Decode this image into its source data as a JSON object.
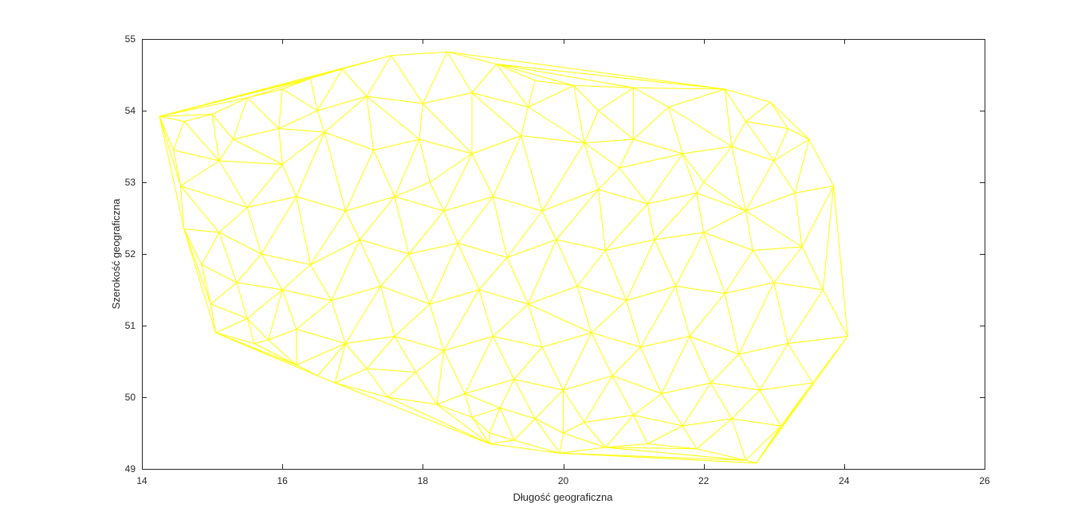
{
  "chart_data": {
    "type": "scatter",
    "subtype": "delaunay-triangulation-mesh",
    "title": "",
    "xlabel": "Długość geograficzna",
    "ylabel": "Szerokość geograficzna",
    "xlim": [
      14,
      26
    ],
    "ylim": [
      49,
      55
    ],
    "xticks": [
      14,
      16,
      18,
      20,
      22,
      24,
      26
    ],
    "yticks": [
      49,
      50,
      51,
      52,
      53,
      54,
      55
    ],
    "grid": false,
    "legend": "none",
    "line_color": "#ffff00",
    "points": [
      [
        14.25,
        53.92
      ],
      [
        14.6,
        53.85
      ],
      [
        15.0,
        53.95
      ],
      [
        15.5,
        54.18
      ],
      [
        16.0,
        54.3
      ],
      [
        16.4,
        54.45
      ],
      [
        16.85,
        54.58
      ],
      [
        17.55,
        54.77
      ],
      [
        18.35,
        54.82
      ],
      [
        19.05,
        54.65
      ],
      [
        19.6,
        54.42
      ],
      [
        20.15,
        54.35
      ],
      [
        21.0,
        54.32
      ],
      [
        22.3,
        54.3
      ],
      [
        22.95,
        54.12
      ],
      [
        23.5,
        53.6
      ],
      [
        23.85,
        52.95
      ],
      [
        24.05,
        50.85
      ],
      [
        23.55,
        50.2
      ],
      [
        23.1,
        49.6
      ],
      [
        22.75,
        49.08
      ],
      [
        22.6,
        49.12
      ],
      [
        21.9,
        49.28
      ],
      [
        21.2,
        49.35
      ],
      [
        20.6,
        49.3
      ],
      [
        19.95,
        49.22
      ],
      [
        19.3,
        49.4
      ],
      [
        18.95,
        49.5
      ],
      [
        18.7,
        49.72
      ],
      [
        18.2,
        49.9
      ],
      [
        17.5,
        50.0
      ],
      [
        16.75,
        50.2
      ],
      [
        16.2,
        50.45
      ],
      [
        15.6,
        50.75
      ],
      [
        15.05,
        50.9
      ],
      [
        14.98,
        51.3
      ],
      [
        14.85,
        51.85
      ],
      [
        14.6,
        52.35
      ],
      [
        14.55,
        52.95
      ],
      [
        14.45,
        53.45
      ],
      [
        15.3,
        53.6
      ],
      [
        15.95,
        53.75
      ],
      [
        16.6,
        53.7
      ],
      [
        17.3,
        53.45
      ],
      [
        17.95,
        53.6
      ],
      [
        18.7,
        53.4
      ],
      [
        19.4,
        53.65
      ],
      [
        20.3,
        53.55
      ],
      [
        21.0,
        53.6
      ],
      [
        21.7,
        53.4
      ],
      [
        22.4,
        53.5
      ],
      [
        23.0,
        53.3
      ],
      [
        23.3,
        52.85
      ],
      [
        22.6,
        52.6
      ],
      [
        21.9,
        52.85
      ],
      [
        21.2,
        52.7
      ],
      [
        20.5,
        52.9
      ],
      [
        19.7,
        52.6
      ],
      [
        19.0,
        52.8
      ],
      [
        18.3,
        52.6
      ],
      [
        17.6,
        52.8
      ],
      [
        16.9,
        52.6
      ],
      [
        16.2,
        52.8
      ],
      [
        15.5,
        52.65
      ],
      [
        15.1,
        52.3
      ],
      [
        15.7,
        52.0
      ],
      [
        16.4,
        51.85
      ],
      [
        17.1,
        52.2
      ],
      [
        17.8,
        52.0
      ],
      [
        18.5,
        52.15
      ],
      [
        19.2,
        51.95
      ],
      [
        19.9,
        52.2
      ],
      [
        20.6,
        52.05
      ],
      [
        21.3,
        52.2
      ],
      [
        22.0,
        52.3
      ],
      [
        22.7,
        52.05
      ],
      [
        23.4,
        52.1
      ],
      [
        23.7,
        51.5
      ],
      [
        23.0,
        51.6
      ],
      [
        22.3,
        51.45
      ],
      [
        21.6,
        51.55
      ],
      [
        20.9,
        51.35
      ],
      [
        20.2,
        51.55
      ],
      [
        19.5,
        51.3
      ],
      [
        18.8,
        51.5
      ],
      [
        18.1,
        51.3
      ],
      [
        17.4,
        51.55
      ],
      [
        16.7,
        51.35
      ],
      [
        16.0,
        51.5
      ],
      [
        15.35,
        51.6
      ],
      [
        15.5,
        51.1
      ],
      [
        16.2,
        50.95
      ],
      [
        16.9,
        50.75
      ],
      [
        17.6,
        50.85
      ],
      [
        18.3,
        50.65
      ],
      [
        19.0,
        50.85
      ],
      [
        19.7,
        50.7
      ],
      [
        20.4,
        50.9
      ],
      [
        21.1,
        50.7
      ],
      [
        21.8,
        50.85
      ],
      [
        22.5,
        50.6
      ],
      [
        23.2,
        50.75
      ],
      [
        22.8,
        50.1
      ],
      [
        22.1,
        50.2
      ],
      [
        21.4,
        50.05
      ],
      [
        20.7,
        50.3
      ],
      [
        20.0,
        50.1
      ],
      [
        19.3,
        50.25
      ],
      [
        18.6,
        50.05
      ],
      [
        17.9,
        50.35
      ],
      [
        17.2,
        50.4
      ],
      [
        19.6,
        49.7
      ],
      [
        20.3,
        49.65
      ],
      [
        21.0,
        49.75
      ],
      [
        21.7,
        49.6
      ],
      [
        22.4,
        49.7
      ],
      [
        19.1,
        49.85
      ],
      [
        18.95,
        49.35
      ],
      [
        20.0,
        49.5
      ],
      [
        16.5,
        50.3
      ],
      [
        15.8,
        50.8
      ],
      [
        16.5,
        54.0
      ],
      [
        17.2,
        54.2
      ],
      [
        18.0,
        54.1
      ],
      [
        18.7,
        54.25
      ],
      [
        19.5,
        54.05
      ],
      [
        20.5,
        54.0
      ],
      [
        21.5,
        54.05
      ],
      [
        22.6,
        53.85
      ],
      [
        23.2,
        53.75
      ],
      [
        22.0,
        53.0
      ],
      [
        20.8,
        53.2
      ],
      [
        18.1,
        53.0
      ],
      [
        16.0,
        53.25
      ],
      [
        15.1,
        53.3
      ]
    ]
  }
}
